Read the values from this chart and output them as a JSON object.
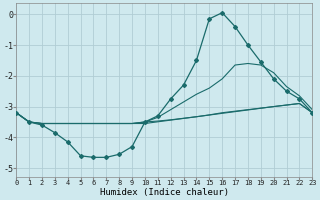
{
  "xlabel": "Humidex (Indice chaleur)",
  "bg_color": "#cfe9ee",
  "grid_color": "#b0cdd4",
  "line_color": "#1a6b6b",
  "xlim": [
    0,
    23
  ],
  "ylim": [
    -5.3,
    0.35
  ],
  "yticks": [
    0,
    -1,
    -2,
    -3,
    -4,
    -5
  ],
  "xticks": [
    0,
    1,
    2,
    3,
    4,
    5,
    6,
    7,
    8,
    9,
    10,
    11,
    12,
    13,
    14,
    15,
    16,
    17,
    18,
    19,
    20,
    21,
    22,
    23
  ],
  "series1_x": [
    0,
    1,
    2,
    3,
    4,
    5,
    6,
    7,
    8,
    9,
    10,
    11,
    12,
    13,
    14,
    15,
    16,
    17,
    18,
    19,
    20,
    21,
    22,
    23
  ],
  "series1_y": [
    -3.2,
    -3.5,
    -3.6,
    -3.85,
    -4.15,
    -4.6,
    -4.65,
    -4.65,
    -4.55,
    -4.3,
    -3.5,
    -3.3,
    -2.75,
    -2.3,
    -1.5,
    -0.15,
    0.05,
    -0.4,
    -1.0,
    -1.55,
    -2.1,
    -2.5,
    -2.75,
    -3.2
  ],
  "series2_x": [
    0,
    1,
    2,
    3,
    4,
    5,
    6,
    7,
    8,
    9,
    10,
    11,
    12,
    13,
    14,
    15,
    16,
    17,
    18,
    19,
    20,
    21,
    22,
    23
  ],
  "series2_y": [
    -3.2,
    -3.5,
    -3.55,
    -3.55,
    -3.55,
    -3.55,
    -3.55,
    -3.55,
    -3.55,
    -3.55,
    -3.5,
    -3.47,
    -3.43,
    -3.38,
    -3.33,
    -3.27,
    -3.2,
    -3.15,
    -3.1,
    -3.05,
    -3.0,
    -2.95,
    -2.9,
    -3.2
  ],
  "series3_x": [
    0,
    1,
    2,
    3,
    4,
    5,
    6,
    7,
    8,
    9,
    10,
    11,
    12,
    13,
    14,
    15,
    16,
    17,
    18,
    19,
    20,
    21,
    22,
    23
  ],
  "series3_y": [
    -3.2,
    -3.5,
    -3.55,
    -3.55,
    -3.55,
    -3.55,
    -3.55,
    -3.55,
    -3.55,
    -3.55,
    -3.5,
    -3.35,
    -3.1,
    -2.85,
    -2.6,
    -2.4,
    -2.1,
    -1.65,
    -1.6,
    -1.65,
    -1.9,
    -2.35,
    -2.65,
    -3.1
  ],
  "series4_x": [
    0,
    1,
    2,
    3,
    9,
    10,
    20,
    21,
    22,
    23
  ],
  "series4_y": [
    -3.2,
    -3.5,
    -3.55,
    -3.55,
    -3.55,
    -3.55,
    -3.0,
    -2.95,
    -2.9,
    -3.2
  ]
}
